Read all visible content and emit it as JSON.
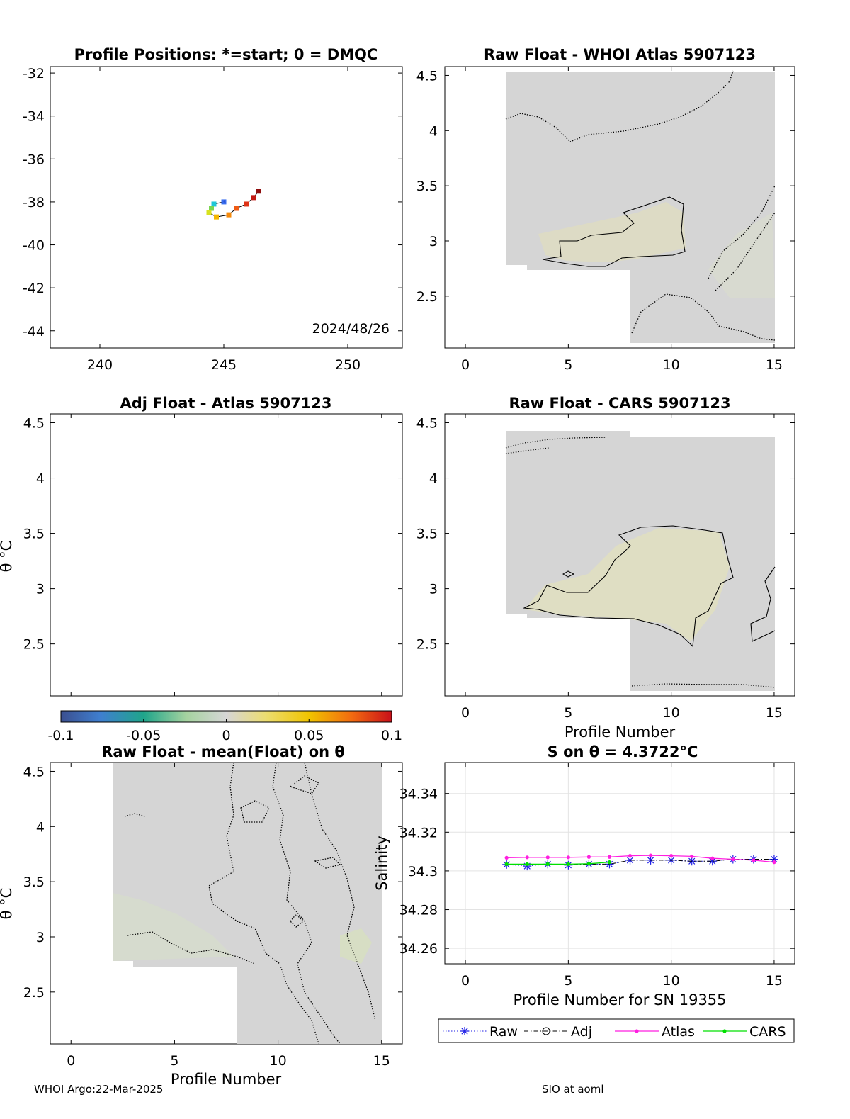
{
  "footer": {
    "left": "WHOI Argo:22-Mar-2025",
    "right": "SIO at aoml"
  },
  "icons": {
    "raw_marker": "asterisk",
    "adj_marker": "circle",
    "atlas_marker": "dot",
    "cars_marker": "dot"
  },
  "chart_data": [
    {
      "type": "scatter",
      "id": "positions",
      "title": "Profile Positions: *=start; 0 = DMQC",
      "annotation": "2024/48/26",
      "xlim": [
        238,
        252.2
      ],
      "ylim": [
        -44.8,
        -31.7
      ],
      "xticks": [
        "240",
        "245",
        "250"
      ],
      "yticks": [
        "-32",
        "-34",
        "-36",
        "-38",
        "-40",
        "-42",
        "-44"
      ],
      "x": [
        245.0,
        244.6,
        244.5,
        244.4,
        244.7,
        245.2,
        245.5,
        245.9,
        246.2,
        246.4
      ],
      "y": [
        -38.0,
        -38.1,
        -38.3,
        -38.5,
        -38.7,
        -38.6,
        -38.3,
        -38.1,
        -37.8,
        -37.5
      ],
      "point_colors": [
        "#3a6ff0",
        "#1fc7d8",
        "#7ad651",
        "#d7e21f",
        "#f5b800",
        "#f58a0b",
        "#ef5b14",
        "#df3316",
        "#c21812",
        "#8e0d0d"
      ]
    },
    {
      "type": "heatmap",
      "id": "raw-whoi",
      "title": "Raw Float - WHOI Atlas  5907123",
      "xlim": [
        -1,
        16
      ],
      "ylim": [
        2.03,
        4.58
      ],
      "xticks": [
        "0",
        "5",
        "10",
        "15"
      ],
      "yticks": [
        "2.5",
        "3",
        "3.5",
        "4",
        "4.5"
      ]
    },
    {
      "type": "heatmap",
      "id": "adj-atlas",
      "title": "Adj Float - Atlas  5907123",
      "ylabel": "θ °C",
      "xlim": [
        -1,
        16
      ],
      "ylim": [
        2.03,
        4.58
      ],
      "yticks": [
        "2.5",
        "3",
        "3.5",
        "4",
        "4.5"
      ]
    },
    {
      "type": "heatmap",
      "id": "raw-cars",
      "title": "Raw Float - CARS  5907123",
      "xlabel": "Profile Number",
      "xlim": [
        -1,
        16
      ],
      "ylim": [
        2.03,
        4.58
      ],
      "xticks": [
        "0",
        "5",
        "10",
        "15"
      ],
      "yticks": [
        "2.5",
        "3",
        "3.5",
        "4",
        "4.5"
      ]
    },
    {
      "type": "heatmap",
      "id": "colorbar",
      "range": [
        -0.1,
        0.1
      ],
      "ticks": [
        "-0.1",
        "-0.05",
        "0",
        "0.05",
        "0.1"
      ]
    },
    {
      "type": "heatmap",
      "id": "raw-mean",
      "title": "Raw Float - mean(Float) on θ",
      "xlabel": "Profile Number",
      "ylabel": "θ °C",
      "xlim": [
        -1,
        16
      ],
      "ylim": [
        2.03,
        4.58
      ],
      "xticks": [
        "0",
        "5",
        "10",
        "15"
      ],
      "yticks": [
        "2.5",
        "3",
        "3.5",
        "4",
        "4.5"
      ]
    },
    {
      "type": "line",
      "id": "salinity",
      "title": "S on θ = 4.3722°C",
      "xlabel": "Profile Number for SN 19355",
      "ylabel": "Salinity",
      "xlim": [
        -1,
        16
      ],
      "ylim": [
        34.252,
        34.356
      ],
      "xticks": [
        "0",
        "5",
        "10",
        "15"
      ],
      "yticks": [
        "34.26",
        "34.28",
        "34.3",
        "34.32",
        "34.34"
      ],
      "grid": true,
      "legend": "bottom",
      "series": [
        {
          "name": "Raw",
          "color": "#1f1fe6",
          "x": [
            2,
            3,
            4,
            5,
            6,
            7,
            8,
            9,
            10,
            11,
            12,
            13,
            14,
            15
          ],
          "y": [
            34.3033,
            34.3025,
            34.3035,
            34.303,
            34.3035,
            34.3035,
            34.3055,
            34.3055,
            34.3055,
            34.305,
            34.305,
            34.306,
            34.306,
            34.306
          ]
        },
        {
          "name": "Adj",
          "color": "#000000",
          "x": [
            2,
            3,
            4,
            5,
            6,
            7,
            8,
            9,
            10,
            11,
            12,
            13,
            14,
            15
          ],
          "y": [
            34.3035,
            34.303,
            34.3035,
            34.3032,
            34.3035,
            34.3035,
            34.3055,
            34.3055,
            34.3055,
            34.305,
            34.305,
            34.306,
            34.306,
            34.306
          ]
        },
        {
          "name": "Atlas",
          "color": "#ff1fe0",
          "x": [
            2,
            3,
            4,
            5,
            6,
            7,
            8,
            9,
            10,
            11,
            12,
            13,
            14,
            15
          ],
          "y": [
            34.3068,
            34.307,
            34.307,
            34.307,
            34.3072,
            34.3072,
            34.3078,
            34.308,
            34.3078,
            34.3075,
            34.3065,
            34.306,
            34.3055,
            34.3045
          ]
        },
        {
          "name": "CARS",
          "color": "#00e000",
          "x": [
            2,
            3,
            4,
            5,
            6,
            7
          ],
          "y": [
            34.3035,
            34.3035,
            34.3035,
            34.3035,
            34.3037,
            34.3045
          ]
        }
      ]
    }
  ]
}
